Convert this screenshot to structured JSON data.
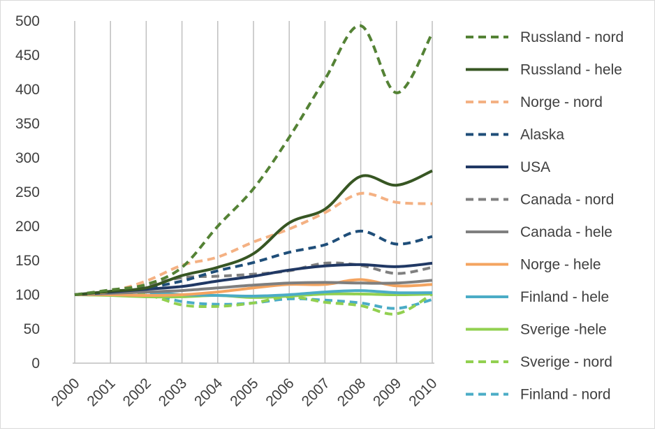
{
  "chart_data": {
    "type": "line",
    "title": "",
    "xlabel": "",
    "ylabel": "",
    "ylim": [
      0,
      500
    ],
    "yticks": [
      0,
      50,
      100,
      150,
      200,
      250,
      300,
      350,
      400,
      450,
      500
    ],
    "categories": [
      "2000",
      "2001",
      "2002",
      "2003",
      "2004",
      "2005",
      "2006",
      "2007",
      "2008",
      "2009",
      "2010"
    ],
    "grid": "vertical",
    "legend_position": "right",
    "series": [
      {
        "name": "Russland - nord",
        "color": "#548235",
        "dash": true,
        "values": [
          100,
          107,
          115,
          140,
          200,
          255,
          330,
          415,
          493,
          395,
          482
        ]
      },
      {
        "name": "Russland - hele",
        "color": "#375623",
        "dash": false,
        "values": [
          100,
          105,
          110,
          128,
          140,
          160,
          205,
          225,
          273,
          260,
          281
        ]
      },
      {
        "name": "Norge - nord",
        "color": "#f4b183",
        "dash": true,
        "values": [
          100,
          105,
          120,
          143,
          155,
          177,
          196,
          220,
          248,
          235,
          233
        ]
      },
      {
        "name": "Alaska",
        "color": "#1f4e79",
        "dash": true,
        "values": [
          100,
          105,
          110,
          120,
          135,
          147,
          162,
          173,
          193,
          174,
          185
        ]
      },
      {
        "name": "USA",
        "color": "#203864",
        "dash": false,
        "values": [
          100,
          104,
          108,
          112,
          120,
          127,
          136,
          142,
          144,
          141,
          146
        ]
      },
      {
        "name": "Canada - nord",
        "color": "#808080",
        "dash": true,
        "values": [
          100,
          106,
          114,
          125,
          127,
          130,
          135,
          146,
          143,
          131,
          140
        ]
      },
      {
        "name": "Canada - hele",
        "color": "#7f7f7f",
        "dash": false,
        "values": [
          100,
          102,
          104,
          106,
          110,
          114,
          117,
          118,
          117,
          117,
          121
        ]
      },
      {
        "name": "Norge - hele",
        "color": "#f4a460",
        "dash": false,
        "values": [
          100,
          100,
          99,
          100,
          104,
          110,
          115,
          115,
          122,
          113,
          115
        ]
      },
      {
        "name": "Finland - hele",
        "color": "#4bacc6",
        "dash": false,
        "values": [
          100,
          102,
          104,
          100,
          99,
          98,
          100,
          104,
          106,
          103,
          103
        ]
      },
      {
        "name": "Sverige -hele",
        "color": "#92d050",
        "dash": false,
        "values": [
          100,
          99,
          97,
          97,
          99,
          96,
          98,
          101,
          101,
          100,
          101
        ]
      },
      {
        "name": "Sverige - nord",
        "color": "#92d050",
        "dash": true,
        "values": [
          100,
          100,
          100,
          85,
          83,
          88,
          97,
          89,
          84,
          72,
          101
        ]
      },
      {
        "name": "Finland - nord",
        "color": "#4bacc6",
        "dash": true,
        "values": [
          100,
          100,
          102,
          90,
          86,
          88,
          94,
          92,
          88,
          80,
          93
        ]
      }
    ]
  }
}
